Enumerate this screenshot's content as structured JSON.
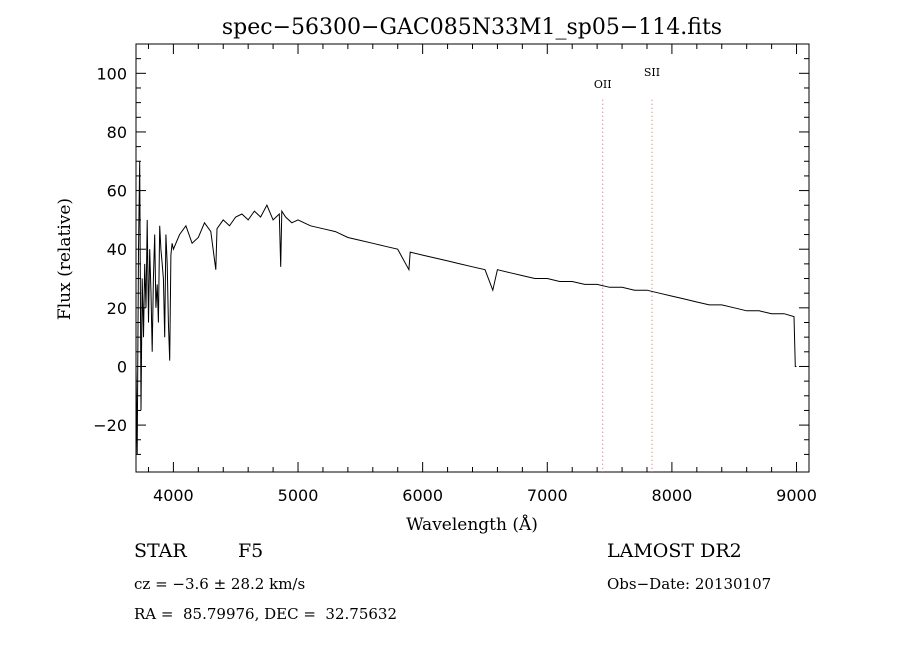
{
  "chart_data": {
    "type": "line",
    "title": "spec−56300−GAC085N33M1_sp05−114.fits",
    "xlabel": "Wavelength (Å)",
    "ylabel": "Flux (relative)",
    "xlim": [
      3700,
      9100
    ],
    "ylim": [
      -36,
      110
    ],
    "xticks": [
      4000,
      5000,
      6000,
      7000,
      8000,
      9000
    ],
    "yticks": [
      -20,
      0,
      20,
      40,
      60,
      80,
      100
    ],
    "ytick_labels": [
      "−20",
      "0",
      "20",
      "40",
      "60",
      "80",
      "100"
    ],
    "lines": [
      {
        "label": "OII",
        "x": 7445
      },
      {
        "label": "SII",
        "x": 7840
      }
    ],
    "series": [
      {
        "x": [
          3700,
          3710,
          3720,
          3730,
          3740,
          3750,
          3760,
          3770,
          3780,
          3790,
          3800,
          3810,
          3820,
          3830,
          3840,
          3850,
          3860,
          3870,
          3880,
          3890,
          3900,
          3910,
          3920,
          3930,
          3940,
          3950,
          3960,
          3970,
          3980,
          3990,
          4000,
          4050,
          4100,
          4150,
          4200,
          4250,
          4300,
          4340,
          4350,
          4400,
          4450,
          4500,
          4550,
          4600,
          4650,
          4700,
          4750,
          4800,
          4850,
          4861,
          4870,
          4900,
          4950,
          5000,
          5100,
          5200,
          5300,
          5400,
          5500,
          5600,
          5700,
          5800,
          5890,
          5900,
          6000,
          6100,
          6200,
          6300,
          6400,
          6500,
          6563,
          6600,
          6700,
          6800,
          6900,
          7000,
          7100,
          7200,
          7300,
          7400,
          7500,
          7600,
          7700,
          7800,
          7900,
          8000,
          8100,
          8200,
          8300,
          8400,
          8500,
          8600,
          8700,
          8800,
          8900,
          8980,
          8990,
          9000
        ],
        "y": [
          0,
          -30,
          40,
          70,
          -15,
          30,
          10,
          35,
          20,
          50,
          15,
          40,
          25,
          5,
          30,
          45,
          20,
          28,
          15,
          48,
          40,
          35,
          30,
          10,
          45,
          35,
          15,
          2,
          38,
          42,
          40,
          45,
          48,
          42,
          44,
          49,
          46,
          33,
          47,
          50,
          48,
          51,
          52,
          50,
          53,
          51,
          55,
          50,
          52,
          34,
          53,
          51,
          49,
          50,
          48,
          47,
          46,
          44,
          43,
          42,
          41,
          40,
          33,
          39,
          38,
          37,
          36,
          35,
          34,
          33,
          26,
          33,
          32,
          31,
          30,
          30,
          29,
          29,
          28,
          28,
          27,
          27,
          26,
          26,
          25,
          24,
          23,
          22,
          21,
          21,
          20,
          19,
          19,
          18,
          18,
          17,
          0,
          0
        ]
      }
    ]
  },
  "info": {
    "class_label": "STAR",
    "subclass": "F5",
    "survey": "LAMOST DR2",
    "cz": "cz = −3.6 ± 28.2 km/s",
    "obs_date": "Obs−Date: 20130107",
    "coords": "RA =  85.79976, DEC =  32.75632"
  }
}
